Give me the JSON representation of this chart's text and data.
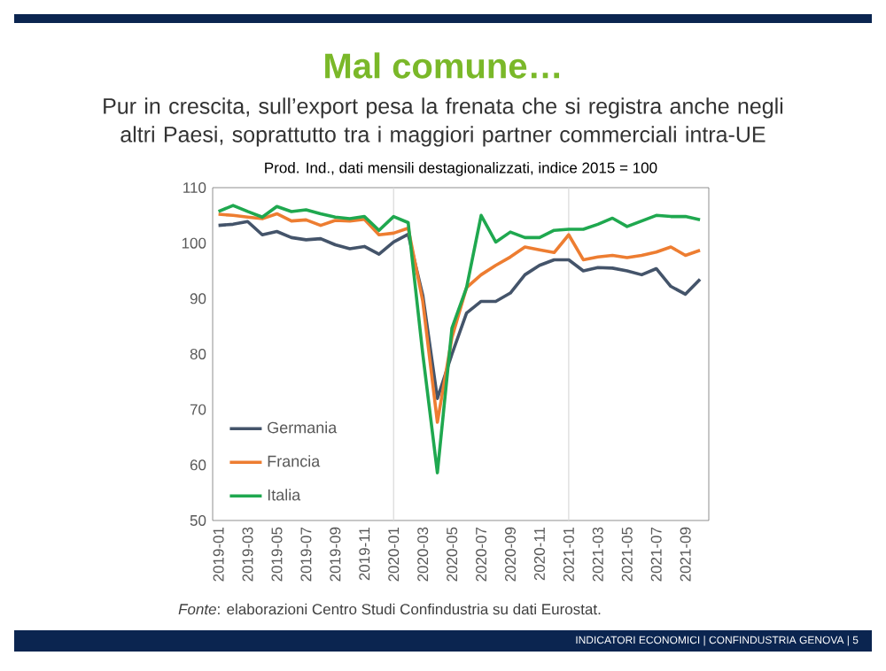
{
  "chart_data": {
    "type": "line",
    "title": "Mal comune…",
    "subtitle": "Pur in crescita, sull’export pesa la frenata che si registra anche negli altri Paesi, soprattutto tra i maggiori partner commerciali intra-UE",
    "xlabel": "Prod. Ind., dati mensili destagionalizzati, indice 2015 = 100",
    "categories": [
      "2019-01",
      null,
      "2019-03",
      null,
      "2019-05",
      null,
      "2019-07",
      null,
      "2019-09",
      null,
      "2019-11",
      null,
      "2020-01",
      null,
      "2020-03",
      null,
      "2020-05",
      null,
      "2020-07",
      null,
      "2020-09",
      null,
      "2020-11",
      null,
      "2021-01",
      null,
      "2021-03",
      null,
      "2021-05",
      null,
      "2021-07",
      null,
      "2021-09",
      null
    ],
    "series": [
      {
        "name": "Germania",
        "color": "#44546a",
        "values": [
          103.2,
          103.4,
          103.9,
          101.5,
          102.1,
          101,
          100.6,
          100.8,
          99.7,
          99,
          99.4,
          98,
          100.2,
          101.6,
          90.6,
          72,
          80,
          87.4,
          89.5,
          89.5,
          91,
          94.3,
          96,
          97,
          97,
          95,
          95.6,
          95.5,
          95,
          94.3,
          95.4,
          92.2,
          90.8,
          93.5
        ]
      },
      {
        "name": "Francia",
        "color": "#ed7d31",
        "values": [
          105.2,
          105,
          104.7,
          104.4,
          105.3,
          104,
          104.2,
          103.2,
          104.1,
          104,
          104.3,
          101.5,
          101.8,
          102.7,
          89.5,
          67.7,
          83,
          92,
          94.3,
          96,
          97.5,
          99.3,
          98.8,
          98.3,
          101.5,
          97,
          97.5,
          97.8,
          97.4,
          97.8,
          98.4,
          99.3,
          97.8,
          98.7
        ]
      },
      {
        "name": "Italia",
        "color": "#1fa84f",
        "values": [
          105.7,
          106.8,
          105.7,
          104.7,
          106.6,
          105.7,
          106,
          105.3,
          104.7,
          104.4,
          104.8,
          102.3,
          104.8,
          103.7,
          80,
          58.6,
          84.7,
          92,
          105,
          100.2,
          102,
          101,
          101,
          102.3,
          102.5,
          102.5,
          103.4,
          104.5,
          103,
          104,
          105,
          104.8,
          104.8,
          104.2
        ]
      }
    ],
    "ylim": [
      50,
      110
    ],
    "yticks": [
      50,
      60,
      70,
      80,
      90,
      100,
      110
    ],
    "ref_lines": [
      {
        "axis": "x",
        "value": "2020-01",
        "color": "#d9d9d9"
      },
      {
        "axis": "x",
        "value": "2021-01",
        "color": "#d9d9d9"
      }
    ],
    "legend": "bottom left",
    "annotations": [
      "*Fonte*: elaborazioni Centro Studi Confindustria su dati Eurostat.",
      "INDICATORI ECONOMICI | CONFINDUSTRIA GENOVA | 5"
    ]
  }
}
